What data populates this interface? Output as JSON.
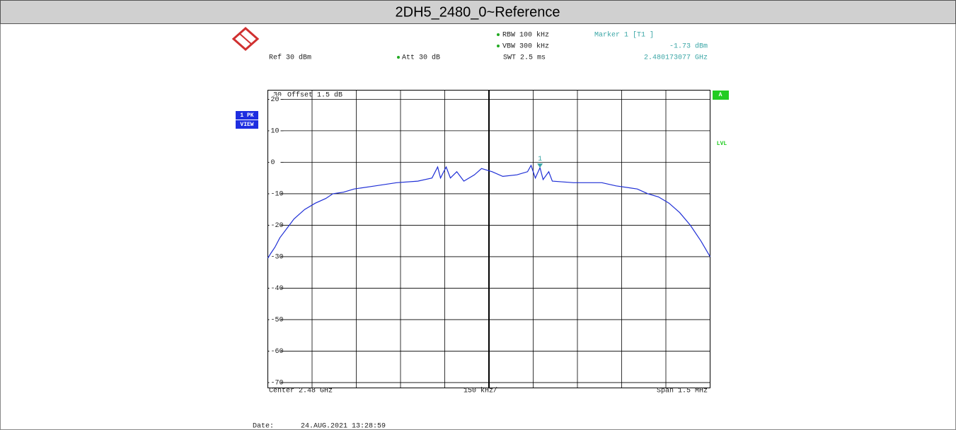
{
  "title": "2DH5_2480_0~Reference",
  "chart_data": {
    "type": "line",
    "x": [
      2.47925,
      2.4792596,
      2.479274,
      2.4792908,
      2.4793148,
      2.4793388,
      2.4793748,
      2.4794108,
      2.4794468,
      2.4794708,
      2.4795068,
      2.4795428,
      2.4796148,
      2.4796868,
      2.4797588,
      2.4798068,
      2.479826,
      2.4798356,
      2.4798548,
      2.4798692,
      2.4798908,
      2.4799148,
      2.4799508,
      2.4799748,
      2.4800108,
      2.4800468,
      2.4800948,
      2.4801308,
      2.4801428,
      2.4801572,
      2.480173077,
      2.4801836,
      2.4802028,
      2.4802148,
      2.4802868,
      2.4803828,
      2.4804308,
      2.4805028,
      2.4805388,
      2.4805748,
      2.4806108,
      2.4806468,
      2.4806828,
      2.4807188,
      2.48075
    ],
    "values": [
      -30.5,
      -29,
      -27,
      -24,
      -21,
      -18,
      -15,
      -13,
      -11.5,
      -10,
      -9.5,
      -8.5,
      -7.5,
      -6.5,
      -6,
      -5,
      -1.5,
      -5,
      -1.5,
      -5,
      -3,
      -6,
      -4,
      -2,
      -3,
      -4.5,
      -4,
      -3,
      -1,
      -5,
      -1.73,
      -5.5,
      -3,
      -6,
      -6.5,
      -6.5,
      -7.5,
      -8.5,
      -10,
      -11,
      -13,
      -16,
      -20,
      -25,
      -30
    ],
    "color": "#1f2fd6",
    "xlim": [
      2.47925,
      2.48075
    ],
    "ylim": [
      -71.7,
      22.9
    ],
    "yticks": [
      20,
      10,
      0,
      -10,
      -20,
      -30,
      -40,
      -50,
      -60,
      -70
    ],
    "grid": true,
    "marker": {
      "label": "1",
      "x": 2.480173077,
      "value": -1.73,
      "name": "Marker 1 [T1 ]",
      "value_label": "-1.73 dBm",
      "x_label": "2.480173077 GHz",
      "color": "#3aa6a6"
    },
    "settings": {
      "rbw": "RBW 100 kHz",
      "vbw": "VBW 300 kHz",
      "swt": "SWT 2.5 ms",
      "ref": "Ref 30 dBm",
      "att": "Att 30 dB",
      "offset": "Offset 1.5 dB",
      "ref_level": "30",
      "trace": "1 PK",
      "view": "VIEW",
      "screen": "A",
      "lvl": "LVL"
    },
    "center": "Center 2.48 GHz",
    "div": "150 kHz/",
    "span": "Span 1.5 MHz"
  },
  "footer": {
    "date_label": "Date:",
    "date": "24.AUG.2021 13:28:59"
  }
}
